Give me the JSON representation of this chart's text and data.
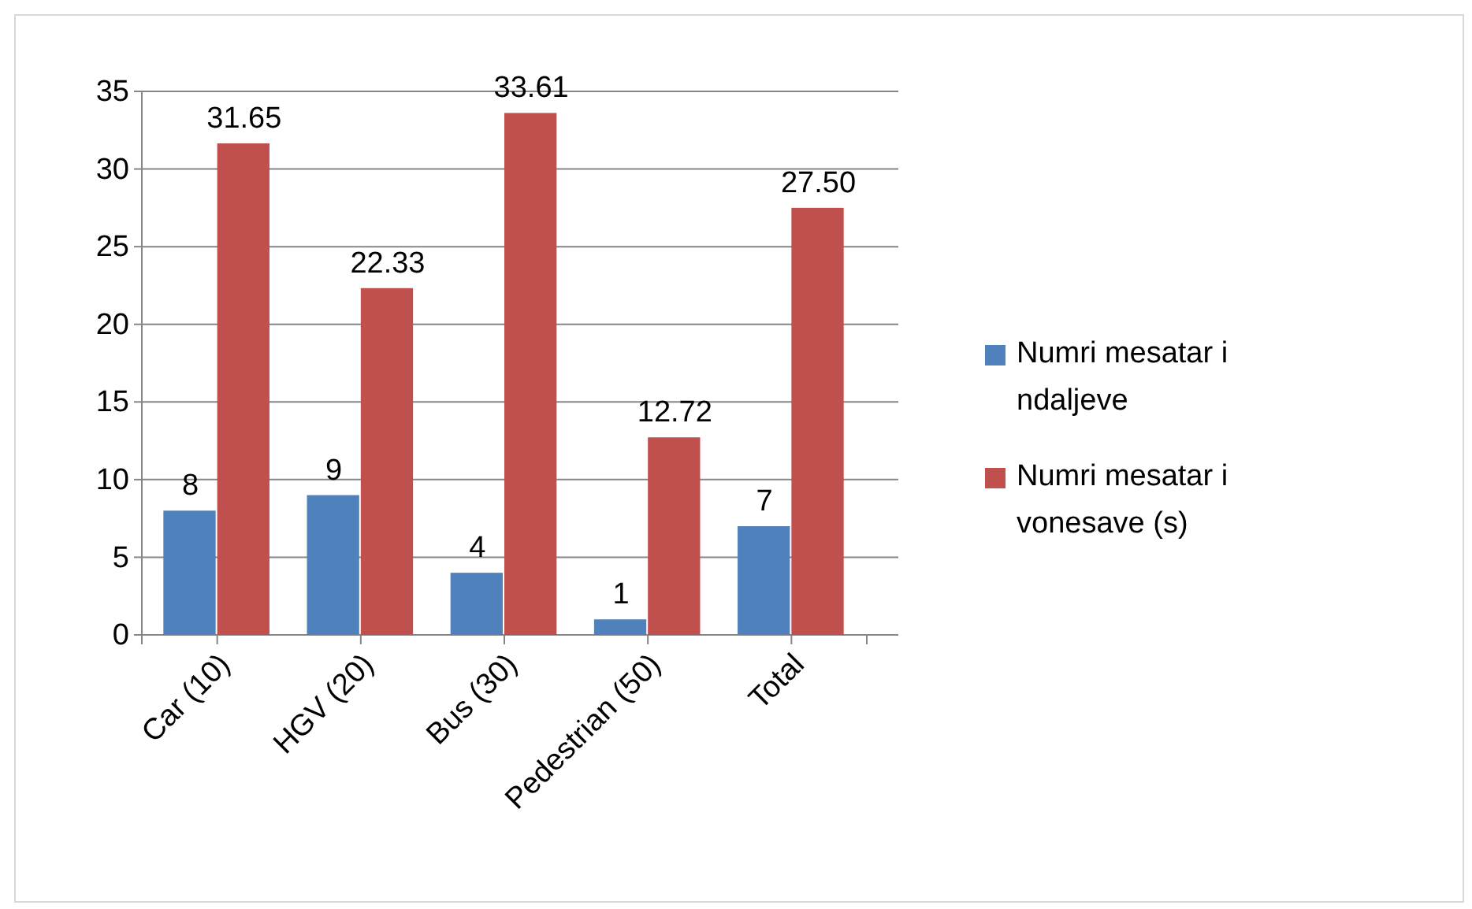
{
  "chart_data": {
    "type": "bar",
    "categories": [
      "Car (10)",
      "HGV (20)",
      "Bus (30)",
      "Pedestrian (50)",
      "Total"
    ],
    "series": [
      {
        "name": "Numri mesatar i ndaljeve",
        "color": "#4f81bd",
        "values": [
          8,
          9,
          4,
          1,
          7
        ],
        "value_labels": [
          "8",
          "9",
          "4",
          "1",
          "7"
        ]
      },
      {
        "name": "Numri mesatar i vonesave (s)",
        "color": "#c0504d",
        "values": [
          31.65,
          22.33,
          33.61,
          12.72,
          27.5
        ],
        "value_labels": [
          "31.65",
          "22.33",
          "33.61",
          "12.72",
          "27.50"
        ]
      }
    ],
    "ylim": [
      0,
      35
    ],
    "yticks": [
      0,
      5,
      10,
      15,
      20,
      25,
      30,
      35
    ],
    "grid": "y",
    "legend": "right"
  }
}
